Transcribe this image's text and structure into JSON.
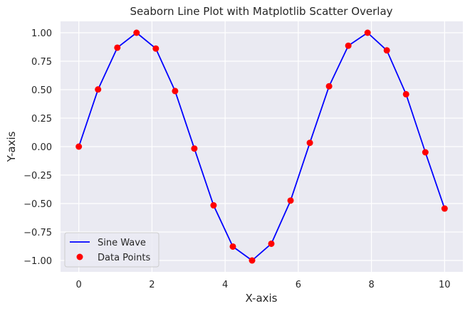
{
  "chart_data": {
    "type": "line",
    "title": "Seaborn Line Plot with Matplotlib Scatter Overlay",
    "xlabel": "X-axis",
    "ylabel": "Y-axis",
    "xlim": [
      -0.5,
      10.5
    ],
    "ylim": [
      -1.1,
      1.1
    ],
    "xticks": [
      0,
      2,
      4,
      6,
      8,
      10
    ],
    "xtick_labels": [
      "0",
      "2",
      "4",
      "6",
      "8",
      "10"
    ],
    "yticks": [
      1.0,
      0.75,
      0.5,
      0.25,
      0.0,
      -0.25,
      -0.5,
      -0.75,
      -1.0
    ],
    "ytick_labels": [
      "1.00",
      "0.75",
      "0.50",
      "0.25",
      "0.00",
      "−0.25",
      "−0.50",
      "−0.75",
      "−1.00"
    ],
    "grid": true,
    "background": "#eaeaf2",
    "legend_position": "lower-left",
    "x": [
      0.0,
      0.526,
      1.053,
      1.579,
      2.105,
      2.632,
      3.158,
      3.684,
      4.211,
      4.737,
      5.263,
      5.789,
      6.316,
      6.842,
      7.368,
      7.895,
      8.421,
      8.947,
      9.474,
      10.0
    ],
    "series": [
      {
        "name": "Sine Wave",
        "kind": "line",
        "color": "#0000ff",
        "values": [
          0.0,
          0.502,
          0.869,
          1.0,
          0.861,
          0.488,
          -0.017,
          -0.516,
          -0.878,
          -1.0,
          -0.853,
          -0.474,
          0.033,
          0.53,
          0.886,
          1.0,
          0.845,
          0.46,
          -0.05,
          -0.544
        ]
      },
      {
        "name": "Data Points",
        "kind": "scatter",
        "color": "#ff0000",
        "values": [
          0.0,
          0.502,
          0.869,
          1.0,
          0.861,
          0.488,
          -0.017,
          -0.516,
          -0.878,
          -1.0,
          -0.853,
          -0.474,
          0.033,
          0.53,
          0.886,
          1.0,
          0.845,
          0.46,
          -0.05,
          -0.544
        ]
      }
    ]
  }
}
